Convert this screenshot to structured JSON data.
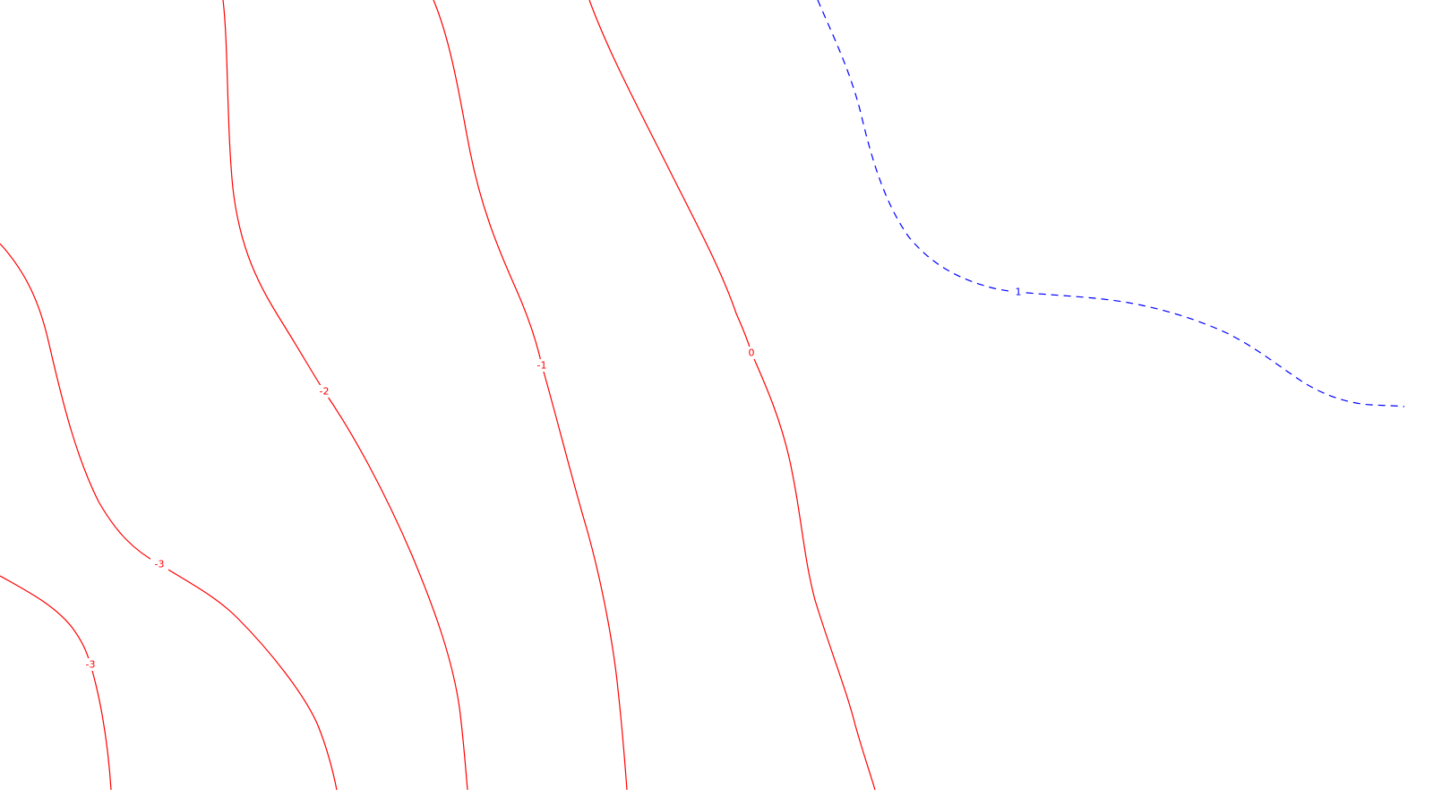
{
  "map": {
    "colors": {
      "background": "#ffffff",
      "negative_and_zero_contour": "#ff0000",
      "positive_contour": "#0000ff"
    },
    "contours": [
      {
        "id": "contour-minus3-a",
        "value": -3,
        "label": "-3",
        "color": "#ff0000",
        "style": "solid"
      },
      {
        "id": "contour-minus3-b",
        "value": -3,
        "label": "-3",
        "color": "#ff0000",
        "style": "solid"
      },
      {
        "id": "contour-minus2",
        "value": -2,
        "label": "-2",
        "color": "#ff0000",
        "style": "solid"
      },
      {
        "id": "contour-minus1",
        "value": -1,
        "label": "-1",
        "color": "#ff0000",
        "style": "solid"
      },
      {
        "id": "contour-0",
        "value": 0,
        "label": "0",
        "color": "#ff0000",
        "style": "solid"
      },
      {
        "id": "contour-plus1",
        "value": 1,
        "label": "1",
        "color": "#0000ff",
        "style": "dashed"
      }
    ]
  }
}
